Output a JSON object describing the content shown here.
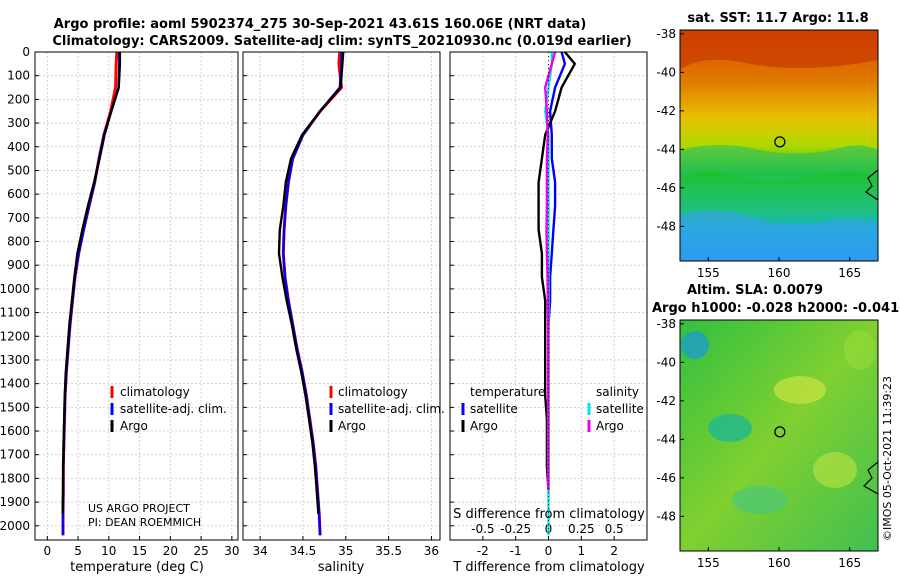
{
  "header": {
    "line1": "Argo profile: aoml 5902374_275 30-Sep-2021 43.61S 160.06E (NRT data)",
    "line2": "Climatology: CARS2009. Satellite-adj clim: synTS_20210930.nc (0.019d earlier)"
  },
  "credit": {
    "line1": "US ARGO PROJECT",
    "line2": "PI: DEAN ROEMMICH"
  },
  "timestamp": "©IMOS 05-Oct-2021 11:39:23",
  "colors": {
    "climatology": "#ff0000",
    "satellite": "#0000ff",
    "argo": "#000000",
    "sat_salinity": "#00e5ee",
    "argo_salinity": "#ee00ee"
  },
  "chart_data": [
    {
      "type": "line",
      "name": "temperature-profile",
      "xlabel": "temperature (deg C)",
      "xlim": [
        -2,
        31
      ],
      "ylim": [
        2060,
        0
      ],
      "xticks": [
        0,
        5,
        10,
        15,
        20,
        25,
        30
      ],
      "yticks": [
        0,
        100,
        200,
        300,
        400,
        500,
        600,
        700,
        800,
        900,
        1000,
        1100,
        1200,
        1300,
        1400,
        1500,
        1600,
        1700,
        1800,
        1900,
        2000
      ],
      "grid": true,
      "legend": [
        "climatology",
        "satellite-adj. clim.",
        "Argo"
      ],
      "series": [
        {
          "name": "climatology",
          "x": [
            11.3,
            11.2,
            11.1,
            10.3,
            9.2,
            8.4,
            7.7,
            6.8,
            5.9,
            5.1,
            4.5,
            4.1,
            3.7,
            3.4,
            3.1,
            2.9,
            2.8,
            2.7,
            2.6,
            2.6,
            2.55,
            2.55
          ],
          "y": [
            0,
            50,
            150,
            250,
            350,
            450,
            550,
            650,
            750,
            850,
            950,
            1050,
            1150,
            1250,
            1350,
            1450,
            1550,
            1650,
            1750,
            1850,
            1950,
            2040
          ]
        },
        {
          "name": "satellite-adj. clim.",
          "x": [
            11.7,
            11.7,
            11.6,
            10.4,
            9.2,
            8.4,
            7.7,
            6.8,
            5.9,
            5.1,
            4.5,
            4.1,
            3.7,
            3.4,
            3.1,
            2.9,
            2.8,
            2.7,
            2.6,
            2.6,
            2.55,
            2.55
          ],
          "y": [
            0,
            50,
            150,
            250,
            350,
            450,
            550,
            650,
            750,
            850,
            950,
            1050,
            1150,
            1250,
            1350,
            1450,
            1550,
            1650,
            1750,
            1850,
            1950,
            2040
          ]
        },
        {
          "name": "Argo",
          "x": [
            11.8,
            11.8,
            11.6,
            10.4,
            9.3,
            8.5,
            7.6,
            6.6,
            5.7,
            4.9,
            4.4,
            4.0,
            3.6,
            3.3,
            3.0,
            2.85,
            2.75,
            2.65,
            2.6,
            2.55,
            2.5
          ],
          "y": [
            0,
            50,
            150,
            250,
            350,
            450,
            550,
            650,
            750,
            850,
            950,
            1050,
            1150,
            1250,
            1350,
            1450,
            1550,
            1650,
            1750,
            1850,
            1950
          ]
        }
      ]
    },
    {
      "type": "line",
      "name": "salinity-profile",
      "xlabel": "salinity",
      "xlim": [
        33.8,
        36.1
      ],
      "ylim": [
        2060,
        0
      ],
      "xticks": [
        34,
        34.5,
        35,
        35.5,
        36
      ],
      "grid": true,
      "legend": [
        "climatology",
        "satellite-adj. clim.",
        "Argo"
      ],
      "series": [
        {
          "name": "climatology",
          "x": [
            34.93,
            34.92,
            34.95,
            34.7,
            34.5,
            34.38,
            34.33,
            34.3,
            34.28,
            34.27,
            34.29,
            34.33,
            34.38,
            34.43,
            34.49,
            34.54,
            34.58,
            34.62,
            34.65,
            34.67,
            34.69,
            34.7
          ],
          "y": [
            0,
            50,
            150,
            250,
            350,
            450,
            550,
            650,
            750,
            850,
            950,
            1050,
            1150,
            1250,
            1350,
            1450,
            1550,
            1650,
            1750,
            1850,
            1950,
            2040
          ]
        },
        {
          "name": "satellite-adj. clim.",
          "x": [
            34.95,
            34.95,
            34.93,
            34.7,
            34.5,
            34.38,
            34.33,
            34.3,
            34.28,
            34.27,
            34.29,
            34.33,
            34.38,
            34.43,
            34.49,
            34.54,
            34.58,
            34.62,
            34.65,
            34.67,
            34.69,
            34.7
          ],
          "y": [
            0,
            50,
            150,
            250,
            350,
            450,
            550,
            650,
            750,
            850,
            950,
            1050,
            1150,
            1250,
            1350,
            1450,
            1550,
            1650,
            1750,
            1850,
            1950,
            2040
          ]
        },
        {
          "name": "Argo",
          "x": [
            34.97,
            34.96,
            34.94,
            34.7,
            34.49,
            34.36,
            34.3,
            34.27,
            34.23,
            34.22,
            34.26,
            34.31,
            34.37,
            34.42,
            34.48,
            34.53,
            34.57,
            34.61,
            34.64,
            34.66,
            34.68
          ],
          "y": [
            0,
            50,
            150,
            250,
            350,
            450,
            550,
            650,
            750,
            850,
            950,
            1050,
            1150,
            1250,
            1350,
            1450,
            1550,
            1650,
            1750,
            1850,
            1950
          ]
        }
      ]
    },
    {
      "type": "line",
      "name": "difference-profile",
      "xlabel": "T difference from climatology",
      "top_axis_label": "S difference from climatology",
      "xlim": [
        -3,
        3
      ],
      "ylim": [
        2060,
        0
      ],
      "xticks": [
        -2,
        -1,
        0,
        1,
        2
      ],
      "top_xticks": [
        "-0.5",
        "-0.25",
        "0",
        "0.25",
        "0.5"
      ],
      "grid": true,
      "legend_temperature_title": "temperature",
      "legend_salinity_title": "salinity",
      "legend_temperature": [
        "satellite",
        "Argo"
      ],
      "legend_salinity": [
        "satellite",
        "Argo"
      ],
      "series": [
        {
          "name": "T satellite",
          "x": [
            0.4,
            0.5,
            0.2,
            0.05,
            0.1,
            0.1,
            0.2,
            0.2,
            0.15,
            0.1,
            0.05,
            0.05,
            0.0,
            0.0,
            0.0,
            0.0,
            0.0,
            0.0,
            0.0,
            0.0
          ],
          "y": [
            0,
            50,
            150,
            250,
            350,
            450,
            550,
            650,
            750,
            850,
            950,
            1050,
            1150,
            1250,
            1350,
            1450,
            1550,
            1650,
            1750,
            1850
          ]
        },
        {
          "name": "T Argo",
          "x": [
            0.5,
            0.8,
            0.4,
            0.2,
            -0.1,
            -0.2,
            -0.3,
            -0.3,
            -0.3,
            -0.2,
            -0.2,
            -0.1,
            -0.1,
            -0.1,
            -0.1,
            -0.1,
            -0.05,
            -0.05,
            -0.05,
            0.0
          ],
          "y": [
            0,
            50,
            150,
            250,
            350,
            450,
            550,
            650,
            750,
            850,
            950,
            1050,
            1150,
            1250,
            1350,
            1450,
            1550,
            1650,
            1750,
            1850
          ]
        },
        {
          "name": "S satellite",
          "x": [
            0.1,
            0.1,
            0.0,
            -0.1,
            0.0,
            0.0,
            0.0,
            0.0,
            0.0,
            0.0,
            0.0,
            0.0,
            0.0,
            0.0,
            0.0,
            0.0,
            0.0,
            0.0,
            0.0,
            0.0,
            0.0,
            0.0
          ],
          "y": [
            0,
            50,
            150,
            250,
            350,
            450,
            550,
            650,
            750,
            850,
            950,
            1050,
            1150,
            1250,
            1350,
            1450,
            1550,
            1650,
            1750,
            1850,
            1950,
            2040
          ]
        },
        {
          "name": "S Argo",
          "x": [
            0.2,
            0.1,
            -0.1,
            -0.05,
            -0.02,
            -0.05,
            -0.05,
            -0.05,
            -0.06,
            -0.05,
            -0.03,
            -0.02,
            -0.01,
            -0.01,
            -0.01,
            -0.01,
            -0.01,
            -0.01,
            -0.01,
            -0.01
          ],
          "y": [
            0,
            50,
            150,
            250,
            350,
            450,
            550,
            650,
            750,
            850,
            950,
            1050,
            1150,
            1250,
            1350,
            1450,
            1550,
            1650,
            1750,
            1850
          ]
        }
      ]
    },
    {
      "type": "heatmap",
      "name": "sst-map",
      "title": "sat. SST: 11.7 Argo: 11.8",
      "xticks": [
        155,
        160,
        165
      ],
      "yticks": [
        -38,
        -40,
        -42,
        -44,
        -46,
        -48
      ],
      "xlim": [
        153,
        167
      ],
      "ylim": [
        -49.8,
        -37.8
      ],
      "argo_position": [
        160.06,
        -43.61
      ]
    },
    {
      "type": "heatmap",
      "name": "sla-map",
      "title": "Altim. SLA: 0.0079",
      "subtitle": "Argo h1000: -0.028 h2000: -0.041",
      "xticks": [
        155,
        160,
        165
      ],
      "yticks": [
        -38,
        -40,
        -42,
        -44,
        -46,
        -48
      ],
      "xlim": [
        153,
        167
      ],
      "ylim": [
        -49.8,
        -37.8
      ],
      "argo_position": [
        160.06,
        -43.61
      ]
    }
  ]
}
